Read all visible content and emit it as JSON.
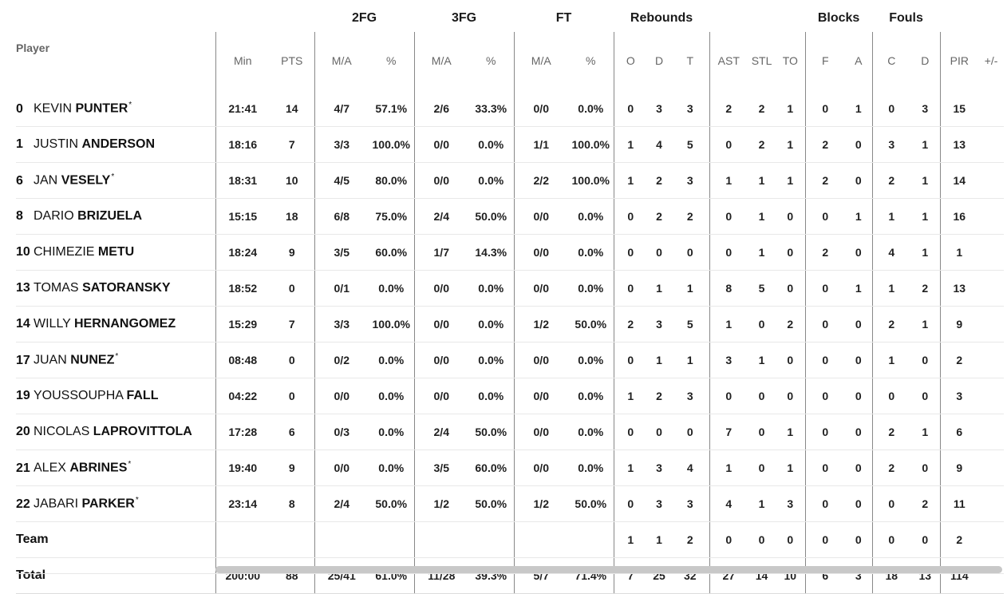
{
  "groups": {
    "fg2": "2FG",
    "fg3": "3FG",
    "ft": "FT",
    "rebounds": "Rebounds",
    "blocks": "Blocks",
    "fouls": "Fouls"
  },
  "columns": {
    "player": "Player",
    "min": "Min",
    "pts": "PTS",
    "fg2_ma": "M/A",
    "fg2_pct": "%",
    "fg3_ma": "M/A",
    "fg3_pct": "%",
    "ft_ma": "M/A",
    "ft_pct": "%",
    "reb_o": "O",
    "reb_d": "D",
    "reb_t": "T",
    "ast": "AST",
    "stl": "STL",
    "to": "TO",
    "blk_f": "F",
    "blk_a": "A",
    "foul_c": "C",
    "foul_d": "D",
    "pir": "PIR",
    "plusminus": "+/-"
  },
  "players": [
    {
      "number": "0",
      "first": "KEVIN",
      "last": "PUNTER",
      "starter": "*",
      "min": "21:41",
      "pts": "14",
      "fg2_ma": "4/7",
      "fg2_pct": "57.1%",
      "fg3_ma": "2/6",
      "fg3_pct": "33.3%",
      "ft_ma": "0/0",
      "ft_pct": "0.0%",
      "reb_o": "0",
      "reb_d": "3",
      "reb_t": "3",
      "ast": "2",
      "stl": "2",
      "to": "1",
      "blk_f": "0",
      "blk_a": "1",
      "foul_c": "0",
      "foul_d": "3",
      "pir": "15"
    },
    {
      "number": "1",
      "first": "JUSTIN",
      "last": "ANDERSON",
      "starter": "",
      "min": "18:16",
      "pts": "7",
      "fg2_ma": "3/3",
      "fg2_pct": "100.0%",
      "fg3_ma": "0/0",
      "fg3_pct": "0.0%",
      "ft_ma": "1/1",
      "ft_pct": "100.0%",
      "reb_o": "1",
      "reb_d": "4",
      "reb_t": "5",
      "ast": "0",
      "stl": "2",
      "to": "1",
      "blk_f": "2",
      "blk_a": "0",
      "foul_c": "3",
      "foul_d": "1",
      "pir": "13"
    },
    {
      "number": "6",
      "first": "JAN",
      "last": "VESELY",
      "starter": "*",
      "min": "18:31",
      "pts": "10",
      "fg2_ma": "4/5",
      "fg2_pct": "80.0%",
      "fg3_ma": "0/0",
      "fg3_pct": "0.0%",
      "ft_ma": "2/2",
      "ft_pct": "100.0%",
      "reb_o": "1",
      "reb_d": "2",
      "reb_t": "3",
      "ast": "1",
      "stl": "1",
      "to": "1",
      "blk_f": "2",
      "blk_a": "0",
      "foul_c": "2",
      "foul_d": "1",
      "pir": "14"
    },
    {
      "number": "8",
      "first": "DARIO",
      "last": "BRIZUELA",
      "starter": "",
      "min": "15:15",
      "pts": "18",
      "fg2_ma": "6/8",
      "fg2_pct": "75.0%",
      "fg3_ma": "2/4",
      "fg3_pct": "50.0%",
      "ft_ma": "0/0",
      "ft_pct": "0.0%",
      "reb_o": "0",
      "reb_d": "2",
      "reb_t": "2",
      "ast": "0",
      "stl": "1",
      "to": "0",
      "blk_f": "0",
      "blk_a": "1",
      "foul_c": "1",
      "foul_d": "1",
      "pir": "16"
    },
    {
      "number": "10",
      "first": "CHIMEZIE",
      "last": "METU",
      "starter": "",
      "min": "18:24",
      "pts": "9",
      "fg2_ma": "3/5",
      "fg2_pct": "60.0%",
      "fg3_ma": "1/7",
      "fg3_pct": "14.3%",
      "ft_ma": "0/0",
      "ft_pct": "0.0%",
      "reb_o": "0",
      "reb_d": "0",
      "reb_t": "0",
      "ast": "0",
      "stl": "1",
      "to": "0",
      "blk_f": "2",
      "blk_a": "0",
      "foul_c": "4",
      "foul_d": "1",
      "pir": "1"
    },
    {
      "number": "13",
      "first": "TOMAS",
      "last": "SATORANSKY",
      "starter": "",
      "min": "18:52",
      "pts": "0",
      "fg2_ma": "0/1",
      "fg2_pct": "0.0%",
      "fg3_ma": "0/0",
      "fg3_pct": "0.0%",
      "ft_ma": "0/0",
      "ft_pct": "0.0%",
      "reb_o": "0",
      "reb_d": "1",
      "reb_t": "1",
      "ast": "8",
      "stl": "5",
      "to": "0",
      "blk_f": "0",
      "blk_a": "1",
      "foul_c": "1",
      "foul_d": "2",
      "pir": "13"
    },
    {
      "number": "14",
      "first": "WILLY",
      "last": "HERNANGOMEZ",
      "starter": "",
      "min": "15:29",
      "pts": "7",
      "fg2_ma": "3/3",
      "fg2_pct": "100.0%",
      "fg3_ma": "0/0",
      "fg3_pct": "0.0%",
      "ft_ma": "1/2",
      "ft_pct": "50.0%",
      "reb_o": "2",
      "reb_d": "3",
      "reb_t": "5",
      "ast": "1",
      "stl": "0",
      "to": "2",
      "blk_f": "0",
      "blk_a": "0",
      "foul_c": "2",
      "foul_d": "1",
      "pir": "9"
    },
    {
      "number": "17",
      "first": "JUAN",
      "last": "NUNEZ",
      "starter": "*",
      "min": "08:48",
      "pts": "0",
      "fg2_ma": "0/2",
      "fg2_pct": "0.0%",
      "fg3_ma": "0/0",
      "fg3_pct": "0.0%",
      "ft_ma": "0/0",
      "ft_pct": "0.0%",
      "reb_o": "0",
      "reb_d": "1",
      "reb_t": "1",
      "ast": "3",
      "stl": "1",
      "to": "0",
      "blk_f": "0",
      "blk_a": "0",
      "foul_c": "1",
      "foul_d": "0",
      "pir": "2"
    },
    {
      "number": "19",
      "first": "YOUSSOUPHA",
      "last": "FALL",
      "starter": "",
      "min": "04:22",
      "pts": "0",
      "fg2_ma": "0/0",
      "fg2_pct": "0.0%",
      "fg3_ma": "0/0",
      "fg3_pct": "0.0%",
      "ft_ma": "0/0",
      "ft_pct": "0.0%",
      "reb_o": "1",
      "reb_d": "2",
      "reb_t": "3",
      "ast": "0",
      "stl": "0",
      "to": "0",
      "blk_f": "0",
      "blk_a": "0",
      "foul_c": "0",
      "foul_d": "0",
      "pir": "3"
    },
    {
      "number": "20",
      "first": "NICOLAS",
      "last": "LAPROVITTOLA",
      "starter": "",
      "min": "17:28",
      "pts": "6",
      "fg2_ma": "0/3",
      "fg2_pct": "0.0%",
      "fg3_ma": "2/4",
      "fg3_pct": "50.0%",
      "ft_ma": "0/0",
      "ft_pct": "0.0%",
      "reb_o": "0",
      "reb_d": "0",
      "reb_t": "0",
      "ast": "7",
      "stl": "0",
      "to": "1",
      "blk_f": "0",
      "blk_a": "0",
      "foul_c": "2",
      "foul_d": "1",
      "pir": "6"
    },
    {
      "number": "21",
      "first": "ALEX",
      "last": "ABRINES",
      "starter": "*",
      "min": "19:40",
      "pts": "9",
      "fg2_ma": "0/0",
      "fg2_pct": "0.0%",
      "fg3_ma": "3/5",
      "fg3_pct": "60.0%",
      "ft_ma": "0/0",
      "ft_pct": "0.0%",
      "reb_o": "1",
      "reb_d": "3",
      "reb_t": "4",
      "ast": "1",
      "stl": "0",
      "to": "1",
      "blk_f": "0",
      "blk_a": "0",
      "foul_c": "2",
      "foul_d": "0",
      "pir": "9"
    },
    {
      "number": "22",
      "first": "JABARI",
      "last": "PARKER",
      "starter": "*",
      "min": "23:14",
      "pts": "8",
      "fg2_ma": "2/4",
      "fg2_pct": "50.0%",
      "fg3_ma": "1/2",
      "fg3_pct": "50.0%",
      "ft_ma": "1/2",
      "ft_pct": "50.0%",
      "reb_o": "0",
      "reb_d": "3",
      "reb_t": "3",
      "ast": "4",
      "stl": "1",
      "to": "3",
      "blk_f": "0",
      "blk_a": "0",
      "foul_c": "0",
      "foul_d": "2",
      "pir": "11"
    }
  ],
  "team": {
    "label": "Team",
    "reb_o": "1",
    "reb_d": "1",
    "reb_t": "2",
    "ast": "0",
    "stl": "0",
    "to": "0",
    "blk_f": "0",
    "blk_a": "0",
    "foul_c": "0",
    "foul_d": "0",
    "pir": "2"
  },
  "total": {
    "label": "Total",
    "min": "200:00",
    "pts": "88",
    "fg2_ma": "25/41",
    "fg2_pct": "61.0%",
    "fg3_ma": "11/28",
    "fg3_pct": "39.3%",
    "ft_ma": "5/7",
    "ft_pct": "71.4%",
    "reb_o": "7",
    "reb_d": "25",
    "reb_t": "32",
    "ast": "27",
    "stl": "14",
    "to": "10",
    "blk_f": "6",
    "blk_a": "3",
    "foul_c": "18",
    "foul_d": "13",
    "pir": "114"
  }
}
